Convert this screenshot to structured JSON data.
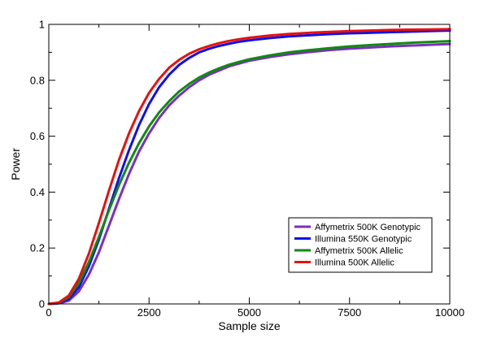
{
  "chart_data": {
    "type": "line",
    "title": "",
    "xlabel": "Sample size",
    "ylabel": "Power",
    "xlim": [
      0,
      10000
    ],
    "ylim": [
      0,
      1
    ],
    "x_ticks": [
      0,
      2500,
      5000,
      7500,
      10000
    ],
    "y_ticks": [
      0,
      0.2,
      0.4,
      0.6,
      0.8,
      1
    ],
    "x_tick_labels": [
      "0",
      "2500",
      "5000",
      "7500",
      "10000"
    ],
    "y_tick_labels": [
      "0",
      "0.2",
      "0.4",
      "0.6",
      "0.8",
      "1"
    ],
    "grid": false,
    "legend_position": "bottom-right",
    "x": [
      0,
      250,
      500,
      750,
      1000,
      1250,
      1500,
      1750,
      2000,
      2250,
      2500,
      2750,
      3000,
      3250,
      3500,
      3750,
      4000,
      4250,
      4500,
      4750,
      5000,
      5500,
      6000,
      6500,
      7000,
      7500,
      8000,
      8500,
      9000,
      9500,
      10000
    ],
    "series": [
      {
        "name": "Affymetrix 500K Genotypic",
        "color": "#7B2FBE",
        "values": [
          0,
          0.002,
          0.012,
          0.045,
          0.105,
          0.185,
          0.28,
          0.375,
          0.465,
          0.545,
          0.61,
          0.665,
          0.71,
          0.745,
          0.775,
          0.8,
          0.82,
          0.835,
          0.85,
          0.86,
          0.87,
          0.883,
          0.893,
          0.901,
          0.908,
          0.913,
          0.917,
          0.921,
          0.924,
          0.927,
          0.93
        ]
      },
      {
        "name": "Illumina 550K Genotypic",
        "color": "#1010E8",
        "values": [
          0,
          0.003,
          0.018,
          0.06,
          0.135,
          0.23,
          0.34,
          0.45,
          0.55,
          0.64,
          0.715,
          0.775,
          0.82,
          0.855,
          0.88,
          0.9,
          0.913,
          0.923,
          0.931,
          0.938,
          0.943,
          0.951,
          0.957,
          0.961,
          0.965,
          0.968,
          0.97,
          0.972,
          0.974,
          0.976,
          0.978
        ]
      },
      {
        "name": "Affymetrix 500K Allelic",
        "color": "#108A10",
        "values": [
          0,
          0.004,
          0.025,
          0.075,
          0.15,
          0.24,
          0.335,
          0.425,
          0.505,
          0.575,
          0.635,
          0.685,
          0.725,
          0.76,
          0.787,
          0.81,
          0.828,
          0.843,
          0.856,
          0.866,
          0.875,
          0.889,
          0.9,
          0.908,
          0.915,
          0.921,
          0.926,
          0.93,
          0.934,
          0.937,
          0.94
        ]
      },
      {
        "name": "Illumina 500K Allelic",
        "color": "#E81010",
        "values": [
          0,
          0.005,
          0.03,
          0.09,
          0.18,
          0.29,
          0.405,
          0.515,
          0.61,
          0.69,
          0.755,
          0.805,
          0.845,
          0.873,
          0.895,
          0.911,
          0.923,
          0.933,
          0.941,
          0.947,
          0.952,
          0.96,
          0.966,
          0.97,
          0.973,
          0.976,
          0.978,
          0.98,
          0.981,
          0.982,
          0.983
        ]
      }
    ]
  }
}
